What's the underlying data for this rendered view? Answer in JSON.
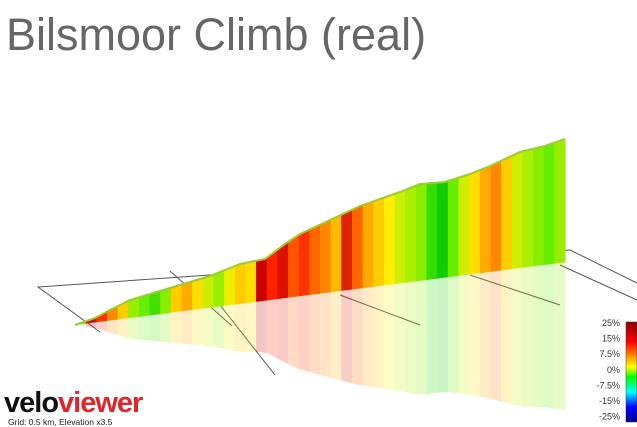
{
  "title": "Bilsmoor Climb (real)",
  "logo": {
    "first": "velo",
    "second": "viewer"
  },
  "caption": "Grid: 0.5 km, Elevation x3.5",
  "legend": {
    "ticks": [
      "25%",
      "15%",
      "7.5%",
      "0%",
      "-7.5%",
      "-15%",
      "-25%"
    ]
  }
}
